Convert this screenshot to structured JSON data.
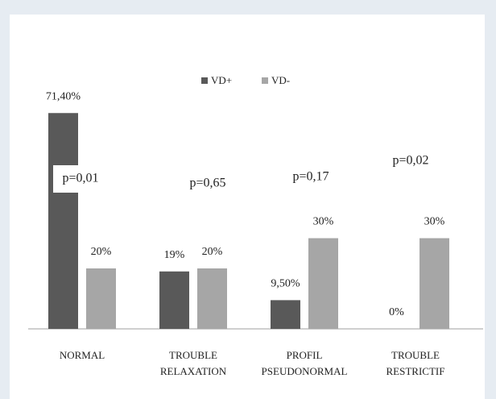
{
  "chart_data": {
    "type": "bar",
    "categories": [
      "NORMAL",
      "TROUBLE\nRELAXATION",
      "PROFIL\nPSEUDONORMAL",
      "TROUBLE\nRESTRICTIF"
    ],
    "series": [
      {
        "name": "VD+",
        "color": "#595959",
        "values": [
          71.4,
          19,
          9.5,
          0
        ],
        "value_labels": [
          "71,40%",
          "19%",
          "9,50%",
          "0%"
        ]
      },
      {
        "name": "VD-",
        "color": "#a6a6a6",
        "values": [
          20,
          20,
          30,
          30
        ],
        "value_labels": [
          "20%",
          "20%",
          "30%",
          "30%"
        ]
      }
    ],
    "annotations": [
      "p=0,01",
      "p=0,65",
      "p=0,17",
      "p=0,02"
    ],
    "legend": "top"
  }
}
